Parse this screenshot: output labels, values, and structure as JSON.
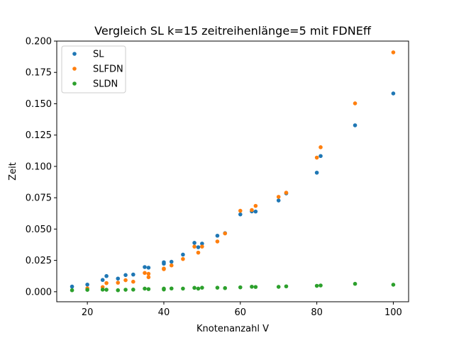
{
  "chart_data": {
    "type": "scatter",
    "title": "Vergleich SL k=15 zeitreihenlänge=5 mit FDNEff",
    "xlabel": "Knotenanzahl V",
    "ylabel": "Zeit",
    "xlim": [
      12,
      104
    ],
    "ylim": [
      -0.008,
      0.2
    ],
    "xticks": [
      20,
      40,
      60,
      80,
      100
    ],
    "yticks": [
      0.0,
      0.025,
      0.05,
      0.075,
      0.1,
      0.125,
      0.15,
      0.175,
      0.2
    ],
    "xtick_labels": [
      "20",
      "40",
      "60",
      "80",
      "100"
    ],
    "ytick_labels": [
      "0.000",
      "0.025",
      "0.050",
      "0.075",
      "0.100",
      "0.125",
      "0.150",
      "0.175",
      "0.200"
    ],
    "grid": false,
    "legend_position": "top-left",
    "series": [
      {
        "name": "SL",
        "color": "#1f77b4",
        "x": [
          16,
          20,
          24,
          25,
          28,
          30,
          32,
          35,
          36,
          40,
          40,
          42,
          45,
          48,
          49,
          50,
          54,
          56,
          60,
          63,
          64,
          70,
          72,
          80,
          81,
          90,
          100
        ],
        "y": [
          0.0041,
          0.0057,
          0.0094,
          0.0125,
          0.0105,
          0.0133,
          0.0137,
          0.0197,
          0.0192,
          0.0235,
          0.0224,
          0.0239,
          0.0296,
          0.039,
          0.0355,
          0.0384,
          0.0447,
          0.0467,
          0.0617,
          0.0641,
          0.064,
          0.0728,
          0.0785,
          0.095,
          0.1083,
          0.1328,
          0.1582
        ]
      },
      {
        "name": "SLFDN",
        "color": "#ff7f0e",
        "x": [
          20,
          24,
          25,
          28,
          30,
          32,
          35,
          36,
          36,
          40,
          40,
          42,
          45,
          48,
          49,
          50,
          54,
          56,
          60,
          63,
          64,
          70,
          72,
          80,
          81,
          90,
          100
        ],
        "y": [
          0.0027,
          0.0037,
          0.0069,
          0.0072,
          0.0092,
          0.008,
          0.015,
          0.0143,
          0.0116,
          0.018,
          0.0185,
          0.021,
          0.0261,
          0.036,
          0.0312,
          0.036,
          0.0401,
          0.0465,
          0.0646,
          0.0652,
          0.0685,
          0.0757,
          0.079,
          0.107,
          0.1153,
          0.1503,
          0.191
        ]
      },
      {
        "name": "SLDN",
        "color": "#2ca02c",
        "x": [
          16,
          20,
          24,
          25,
          28,
          30,
          32,
          35,
          36,
          40,
          40,
          42,
          45,
          48,
          49,
          50,
          54,
          56,
          60,
          63,
          64,
          70,
          72,
          80,
          81,
          90,
          100
        ],
        "y": [
          0.0012,
          0.0015,
          0.0017,
          0.0016,
          0.0012,
          0.0016,
          0.0017,
          0.0025,
          0.0021,
          0.0025,
          0.0018,
          0.0026,
          0.0025,
          0.0031,
          0.0025,
          0.0032,
          0.0032,
          0.0029,
          0.0035,
          0.004,
          0.0038,
          0.0039,
          0.0043,
          0.0047,
          0.005,
          0.0063,
          0.0056
        ]
      }
    ]
  }
}
